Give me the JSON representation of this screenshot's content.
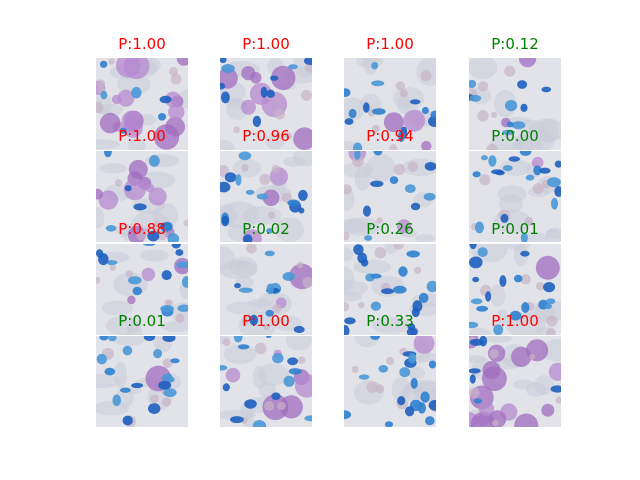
{
  "colors": {
    "positive": "#ff0000",
    "negative": "#008000",
    "background": "#ffffff"
  },
  "grid": {
    "columns": [
      {
        "tiles": [
          {
            "label": "P:1.00",
            "class": "positive",
            "stain": "purple-heavy"
          },
          {
            "label": "P:1.00",
            "class": "positive",
            "stain": "purple-blue"
          },
          {
            "label": "P:0.88",
            "class": "positive",
            "stain": "blue-mixed"
          },
          {
            "label": "P:0.01",
            "class": "negative",
            "stain": "blue"
          }
        ]
      },
      {
        "tiles": [
          {
            "label": "P:1.00",
            "class": "positive",
            "stain": "purple-light"
          },
          {
            "label": "P:0.96",
            "class": "positive",
            "stain": "blue-mixed"
          },
          {
            "label": "P:0.02",
            "class": "negative",
            "stain": "blue-light"
          },
          {
            "label": "P:1.00",
            "class": "positive",
            "stain": "blue-purple"
          }
        ]
      },
      {
        "tiles": [
          {
            "label": "P:1.00",
            "class": "positive",
            "stain": "blue-mixed"
          },
          {
            "label": "P:0.94",
            "class": "positive",
            "stain": "blue-light"
          },
          {
            "label": "P:0.26",
            "class": "negative",
            "stain": "blue"
          },
          {
            "label": "P:0.33",
            "class": "negative",
            "stain": "blue"
          }
        ]
      },
      {
        "tiles": [
          {
            "label": "P:0.12",
            "class": "negative",
            "stain": "blue-light"
          },
          {
            "label": "P:0.00",
            "class": "negative",
            "stain": "blue"
          },
          {
            "label": "P:0.01",
            "class": "negative",
            "stain": "blue"
          },
          {
            "label": "P:1.00",
            "class": "positive",
            "stain": "purple-heavy"
          }
        ]
      }
    ]
  }
}
